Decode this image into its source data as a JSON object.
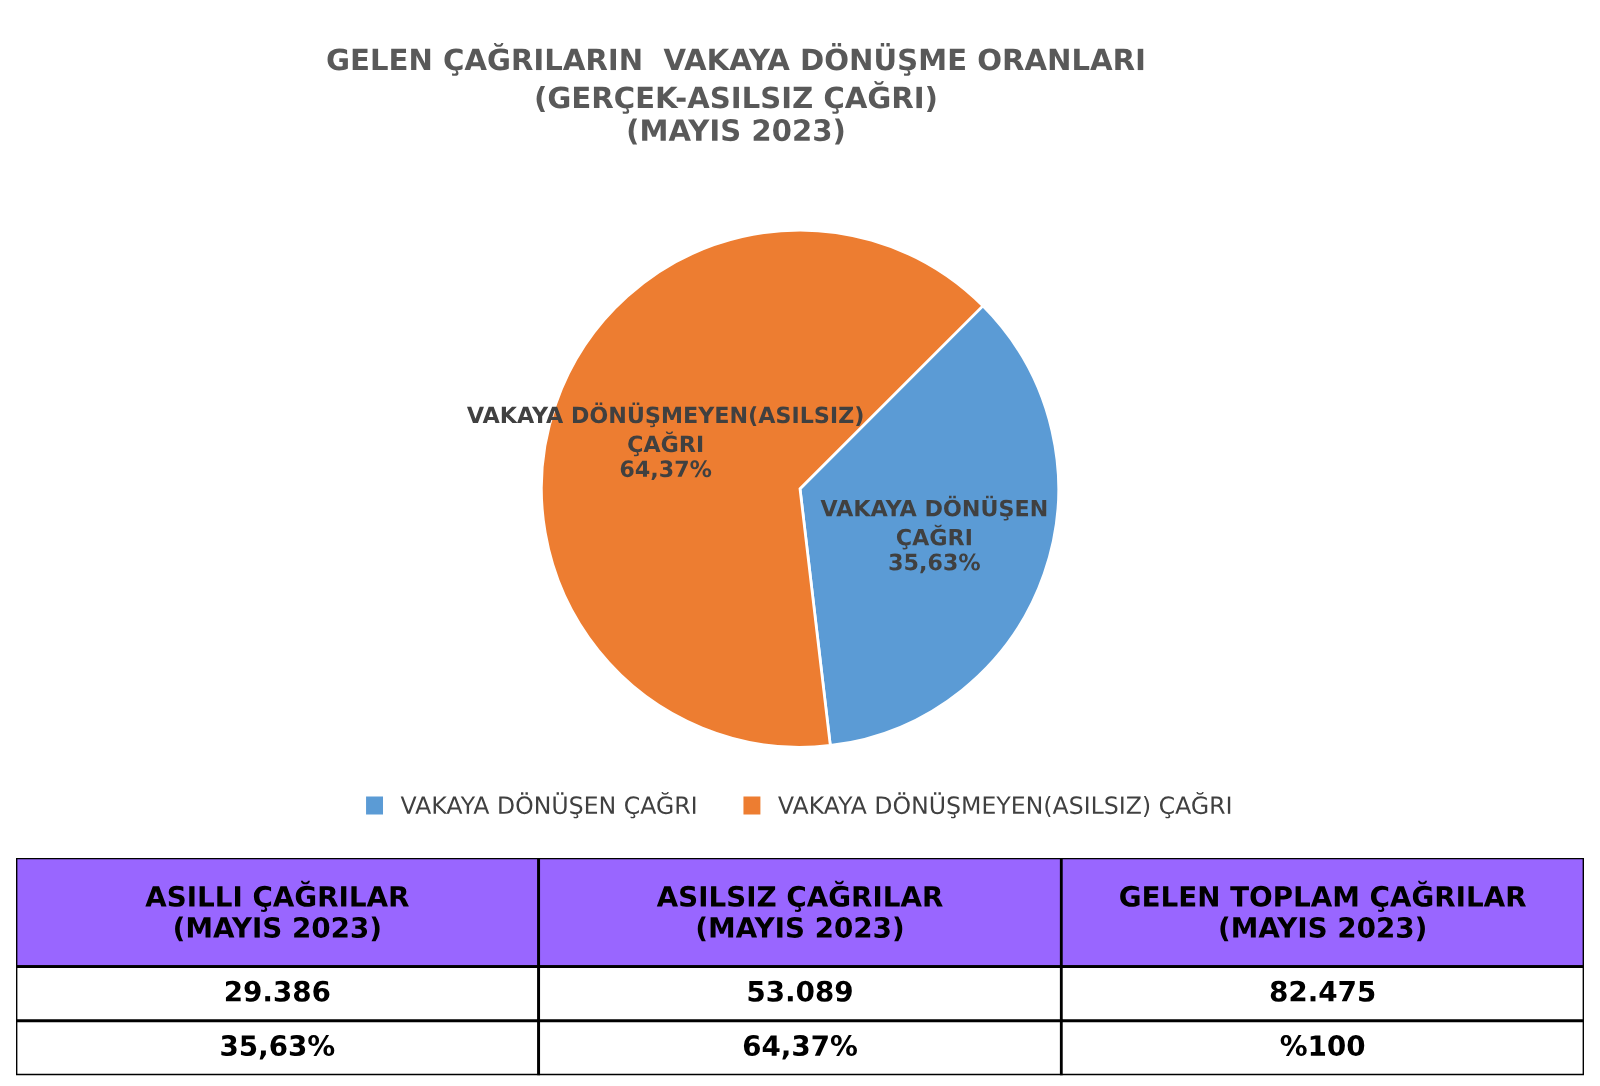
{
  "chart_data": [
    {
      "type": "pie",
      "title": "GELEN ÇAĞRILARIN  VAKAYA DÖNÜŞME ORANLARI\n(GERÇEK-ASILSIZ ÇAĞRI)\n(MAYIS 2023)",
      "categories": [
        "VAKAYA DÖNÜŞEN ÇAĞRI",
        "VAKAYA DÖNÜŞMEYEN(ASILSIZ) ÇAĞRI"
      ],
      "annotations": [
        "VAKAYA DÖNÜŞEN\nÇAĞRI",
        "VAKAYA DÖNÜŞMEYEN(ASILSIZ)\nÇAĞRI"
      ],
      "values": [
        35.63,
        64.37
      ],
      "value_labels": [
        "35,63%",
        "64,37%"
      ],
      "colors": [
        "#5b9bd5",
        "#ed7d31"
      ],
      "legend": "bottom"
    },
    {
      "type": "other",
      "categories": [
        "ASILLI ÇAĞRILAR\n(MAYIS 2023)",
        "ASILSIZ ÇAĞRILAR\n(MAYIS 2023)",
        "GELEN TOPLAM ÇAĞRILAR\n(MAYIS 2023)"
      ],
      "cell_labels": [
        [
          "29.386",
          "53.089",
          "82.475"
        ],
        [
          "35,63%",
          "64,37%",
          "%100"
        ]
      ],
      "color": "#9966ff"
    }
  ]
}
